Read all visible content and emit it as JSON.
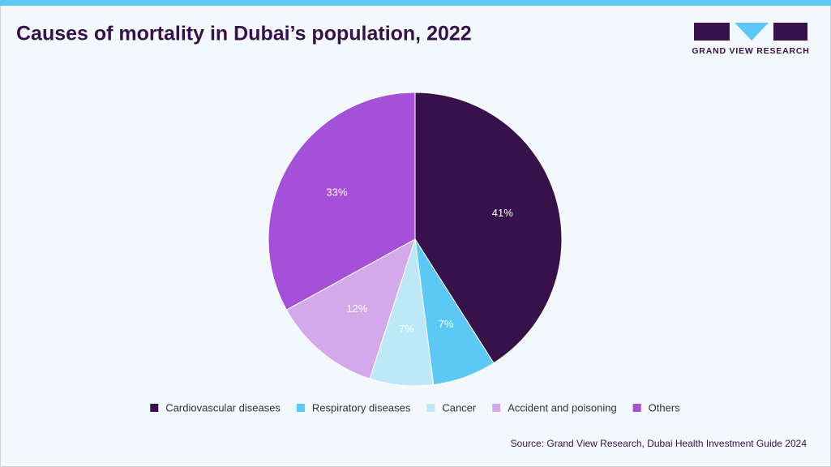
{
  "brand": "GRAND VIEW RESEARCH",
  "chart_data": {
    "type": "pie",
    "title": "Causes of mortality in Dubai’s population, 2022",
    "categories": [
      "Cardiovascular diseases",
      "Respiratory diseases",
      "Cancer",
      "Accident and poisoning",
      "Others"
    ],
    "values": [
      41,
      7,
      7,
      12,
      33
    ],
    "value_labels": [
      "41%",
      "7%",
      "7%",
      "12%",
      "33%"
    ],
    "colors": [
      "#371149",
      "#5bc8f5",
      "#bde8f8",
      "#d4a9ec",
      "#a450d8"
    ],
    "label_colors": [
      "#ffffff",
      "#ffffff",
      "#ffffff",
      "#ffffff",
      "#ffffff"
    ],
    "source": "Source: Grand View Research, Dubai Health Investment Guide 2024"
  }
}
